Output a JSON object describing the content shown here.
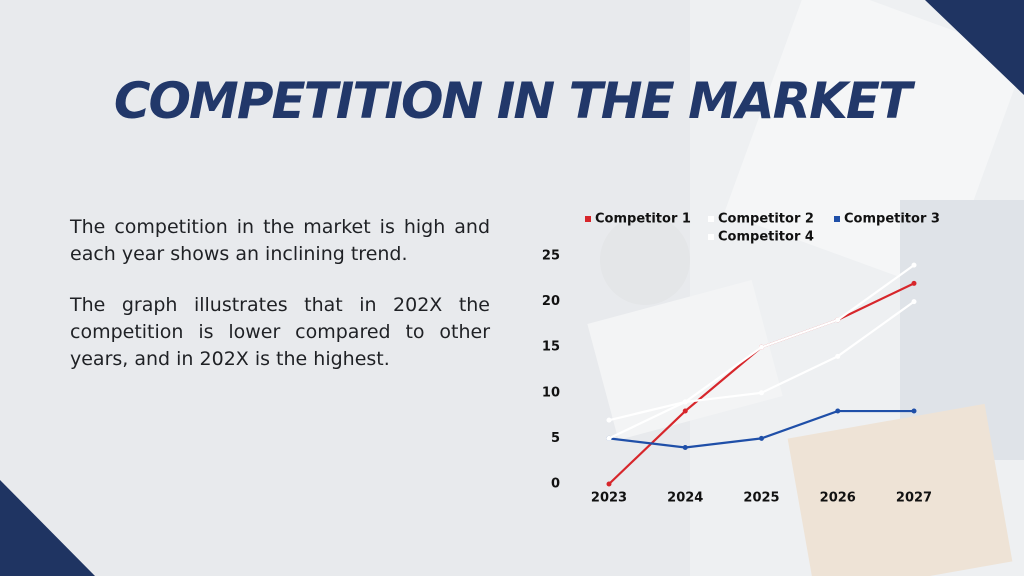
{
  "title": "COMPETITION IN THE MARKET",
  "paragraphs": [
    "The competition in the market is high and each year shows an inclining trend.",
    "The graph illustrates that in 202X the competition is lower compared to other years, and in 202X is the highest."
  ],
  "chart_data": {
    "type": "line",
    "categories": [
      "2023",
      "2024",
      "2025",
      "2026",
      "2027"
    ],
    "series": [
      {
        "name": "Competitor 1",
        "color": "#d7262b",
        "values": [
          0,
          8,
          15,
          18,
          22
        ]
      },
      {
        "name": "Competitor 2",
        "color": "#ffffff",
        "values": [
          7,
          9,
          10,
          14,
          20
        ]
      },
      {
        "name": "Competitor 3",
        "color": "#1f4fa8",
        "values": [
          5,
          4,
          5,
          8,
          8
        ]
      },
      {
        "name": "Competitor 4",
        "color": "#ffffff",
        "values": [
          5,
          9,
          15,
          18,
          24
        ]
      }
    ],
    "ylim": [
      0,
      25
    ],
    "yticks": [
      0,
      5,
      10,
      15,
      20,
      25
    ],
    "grid": false,
    "legend": "top"
  }
}
